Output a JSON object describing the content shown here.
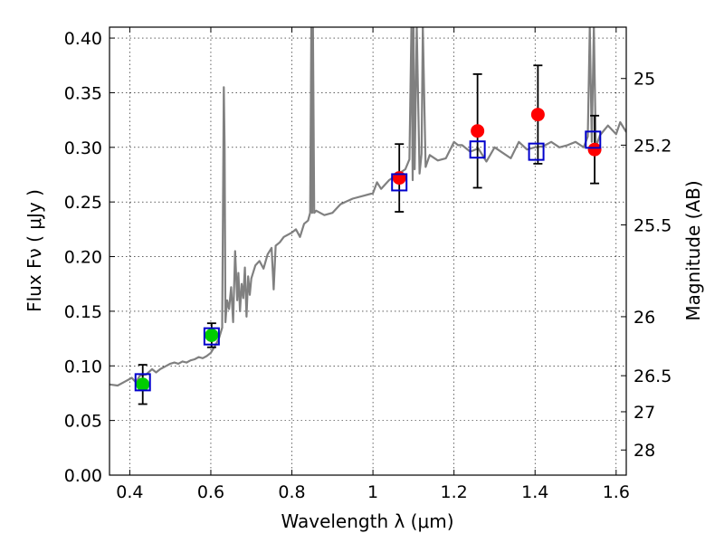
{
  "chart_data": {
    "type": "scatter",
    "title": "",
    "xlabel": "Wavelength  λ (μm)",
    "ylabel": "Flux  Fν  ( μJy )",
    "y2label": "Magnitude (AB)",
    "xlim": [
      0.35,
      1.625
    ],
    "ylim": [
      0.0,
      0.41
    ],
    "grid": true,
    "x_ticks": [
      0.4,
      0.6,
      0.8,
      1.0,
      1.2,
      1.4,
      1.6
    ],
    "x_tick_labels": [
      "0.4",
      "0.6",
      "0.8",
      "1",
      "1.2",
      "1.4",
      "1.6"
    ],
    "y_ticks": [
      0.0,
      0.05,
      0.1,
      0.15,
      0.2,
      0.25,
      0.3,
      0.35,
      0.4
    ],
    "y_tick_labels": [
      "0.00",
      "0.05",
      "0.10",
      "0.15",
      "0.20",
      "0.25",
      "0.30",
      "0.35",
      "0.40"
    ],
    "y2_ticks": [
      {
        "label": "25",
        "flux": 0.363
      },
      {
        "label": "25.2",
        "flux": 0.302
      },
      {
        "label": "25.5",
        "flux": 0.229
      },
      {
        "label": "26",
        "flux": 0.145
      },
      {
        "label": "26.5",
        "flux": 0.091
      },
      {
        "label": "27",
        "flux": 0.058
      },
      {
        "label": "28",
        "flux": 0.023
      }
    ],
    "series": [
      {
        "style": "line",
        "color": "#808080",
        "x": [
          0.35,
          0.37,
          0.39,
          0.405,
          0.415,
          0.425,
          0.44,
          0.455,
          0.465,
          0.475,
          0.49,
          0.5,
          0.51,
          0.52,
          0.53,
          0.54,
          0.55,
          0.56,
          0.57,
          0.58,
          0.59,
          0.6,
          0.61,
          0.62,
          0.628,
          0.632,
          0.634,
          0.636,
          0.64,
          0.645,
          0.65,
          0.655,
          0.66,
          0.665,
          0.668,
          0.672,
          0.676,
          0.68,
          0.684,
          0.688,
          0.692,
          0.696,
          0.7,
          0.71,
          0.72,
          0.73,
          0.74,
          0.75,
          0.755,
          0.76,
          0.77,
          0.78,
          0.8,
          0.81,
          0.82,
          0.83,
          0.84,
          0.845,
          0.848,
          0.85,
          0.852,
          0.855,
          0.86,
          0.88,
          0.9,
          0.92,
          0.95,
          0.98,
          1.0,
          1.01,
          1.02,
          1.04,
          1.06,
          1.08,
          1.09,
          1.095,
          1.098,
          1.1,
          1.103,
          1.108,
          1.115,
          1.12,
          1.123,
          1.13,
          1.14,
          1.16,
          1.18,
          1.2,
          1.21,
          1.22,
          1.24,
          1.26,
          1.28,
          1.3,
          1.32,
          1.34,
          1.36,
          1.38,
          1.4,
          1.42,
          1.44,
          1.46,
          1.48,
          1.5,
          1.52,
          1.53,
          1.535,
          1.54,
          1.545,
          1.55,
          1.56,
          1.58,
          1.6,
          1.61,
          1.625
        ],
        "y": [
          0.083,
          0.082,
          0.086,
          0.089,
          0.085,
          0.091,
          0.092,
          0.097,
          0.094,
          0.097,
          0.1,
          0.102,
          0.103,
          0.102,
          0.104,
          0.103,
          0.105,
          0.106,
          0.108,
          0.107,
          0.109,
          0.112,
          0.118,
          0.125,
          0.135,
          0.355,
          0.3,
          0.14,
          0.16,
          0.152,
          0.172,
          0.14,
          0.205,
          0.16,
          0.185,
          0.15,
          0.175,
          0.162,
          0.19,
          0.145,
          0.182,
          0.165,
          0.18,
          0.192,
          0.196,
          0.189,
          0.202,
          0.208,
          0.17,
          0.21,
          0.213,
          0.218,
          0.222,
          0.225,
          0.218,
          0.23,
          0.233,
          0.24,
          0.41,
          0.24,
          0.41,
          0.24,
          0.242,
          0.238,
          0.24,
          0.248,
          0.253,
          0.256,
          0.258,
          0.268,
          0.262,
          0.27,
          0.275,
          0.28,
          0.289,
          0.41,
          0.27,
          0.41,
          0.28,
          0.41,
          0.276,
          0.294,
          0.41,
          0.282,
          0.293,
          0.288,
          0.29,
          0.305,
          0.302,
          0.302,
          0.296,
          0.299,
          0.287,
          0.3,
          0.295,
          0.29,
          0.305,
          0.298,
          0.3,
          0.301,
          0.305,
          0.3,
          0.302,
          0.305,
          0.3,
          0.31,
          0.41,
          0.305,
          0.41,
          0.3,
          0.311,
          0.32,
          0.312,
          0.323,
          0.314
        ]
      },
      {
        "style": "errorbar-point",
        "color": "#00cc00",
        "x": [
          0.432,
          0.602
        ],
        "y": [
          0.083,
          0.128
        ],
        "yerr": [
          0.018,
          0.011
        ]
      },
      {
        "style": "errorbar-point",
        "color": "#ff0000",
        "x": [
          1.065,
          1.258,
          1.407,
          1.547
        ],
        "y": [
          0.272,
          0.315,
          0.33,
          0.298
        ],
        "yerr": [
          0.031,
          0.052,
          0.045,
          0.031
        ]
      },
      {
        "style": "open-square",
        "color": "#0000cc",
        "x": [
          0.432,
          0.602,
          1.065,
          1.258,
          1.403,
          1.543
        ],
        "y": [
          0.085,
          0.127,
          0.268,
          0.298,
          0.296,
          0.307
        ]
      }
    ]
  }
}
